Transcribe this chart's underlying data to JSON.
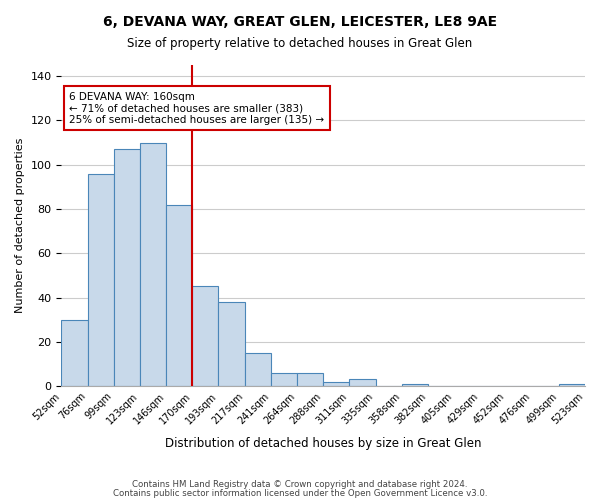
{
  "title": "6, DEVANA WAY, GREAT GLEN, LEICESTER, LE8 9AE",
  "subtitle": "Size of property relative to detached houses in Great Glen",
  "xlabel": "Distribution of detached houses by size in Great Glen",
  "ylabel": "Number of detached properties",
  "bin_labels": [
    "52sqm",
    "76sqm",
    "99sqm",
    "123sqm",
    "146sqm",
    "170sqm",
    "193sqm",
    "217sqm",
    "241sqm",
    "264sqm",
    "288sqm",
    "311sqm",
    "335sqm",
    "358sqm",
    "382sqm",
    "405sqm",
    "429sqm",
    "452sqm",
    "476sqm",
    "499sqm",
    "523sqm"
  ],
  "bar_values": [
    30,
    96,
    107,
    110,
    82,
    45,
    38,
    15,
    6,
    6,
    2,
    3,
    0,
    1,
    0,
    0,
    0,
    0,
    0,
    1
  ],
  "bar_color": "#c8d9ea",
  "bar_edge_color": "#4a86b8",
  "vline_x": 5,
  "vline_color": "#cc0000",
  "ylim": [
    0,
    145
  ],
  "yticks": [
    0,
    20,
    40,
    60,
    80,
    100,
    120,
    140
  ],
  "annotation_line1": "6 DEVANA WAY: 160sqm",
  "annotation_line2": "← 71% of detached houses are smaller (383)",
  "annotation_line3": "25% of semi-detached houses are larger (135) →",
  "annotation_box_color": "#ffffff",
  "annotation_box_edge_color": "#cc0000",
  "footer_line1": "Contains HM Land Registry data © Crown copyright and database right 2024.",
  "footer_line2": "Contains public sector information licensed under the Open Government Licence v3.0.",
  "background_color": "#ffffff",
  "grid_color": "#cccccc"
}
